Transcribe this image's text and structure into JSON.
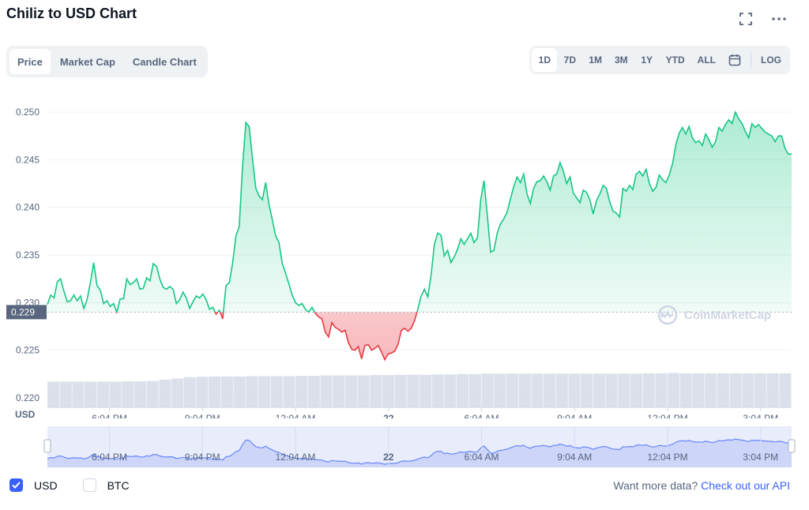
{
  "title": "Chiliz to USD Chart",
  "tabs": [
    {
      "label": "Price",
      "active": true
    },
    {
      "label": "Market Cap",
      "active": false
    },
    {
      "label": "Candle Chart",
      "active": false
    }
  ],
  "ranges": [
    {
      "label": "1D",
      "active": true
    },
    {
      "label": "7D",
      "active": false
    },
    {
      "label": "1M",
      "active": false
    },
    {
      "label": "3M",
      "active": false
    },
    {
      "label": "1Y",
      "active": false
    },
    {
      "label": "YTD",
      "active": false
    },
    {
      "label": "ALL",
      "active": false
    }
  ],
  "log_label": "LOG",
  "icons": {
    "fullscreen": "expand-icon",
    "more": "more-dots-icon",
    "calendar": "calendar-icon",
    "watermark": "coinmarketcap-logo"
  },
  "watermark_text": "CoinMarketCap",
  "currency_label": "USD",
  "legend": [
    {
      "label": "USD",
      "checked": true
    },
    {
      "label": "BTC",
      "checked": false
    }
  ],
  "more_data": {
    "text": "Want more data?",
    "link": "Check out our API"
  },
  "colors": {
    "up": "#16c784",
    "down": "#ea3943",
    "volume": "#cfd6e4",
    "accent": "#3861fb",
    "baseline_tag": "#58667e"
  },
  "chart_data": {
    "type": "area",
    "title": "Chiliz to USD Chart",
    "ylabel": "USD",
    "ylim": [
      0.219,
      0.251
    ],
    "yticks": [
      "0.250",
      "0.245",
      "0.240",
      "0.235",
      "0.230",
      "0.225",
      "0.220"
    ],
    "ytick_values": [
      0.25,
      0.245,
      0.24,
      0.235,
      0.23,
      0.225,
      0.22
    ],
    "baseline": 0.229,
    "baseline_label": "0.229",
    "x_ticks": [
      "6:04 PM",
      "9:04 PM",
      "12:04 AM",
      "22",
      "6:04 AM",
      "9:04 AM",
      "12:04 PM",
      "3:04 PM"
    ],
    "x_tick_hours": [
      2,
      5,
      8,
      11,
      14,
      17,
      20,
      23
    ],
    "x_range_hours": [
      0,
      24
    ],
    "grid": true,
    "series": [
      {
        "values": [
          0.2298,
          0.2308,
          0.2305,
          0.2322,
          0.2325,
          0.2312,
          0.2301,
          0.2302,
          0.2308,
          0.2302,
          0.2307,
          0.2294,
          0.2303,
          0.2321,
          0.2342,
          0.2318,
          0.2313,
          0.2299,
          0.2302,
          0.2296,
          0.2299,
          0.229,
          0.2304,
          0.2304,
          0.2325,
          0.2319,
          0.2321,
          0.2325,
          0.2314,
          0.2315,
          0.2326,
          0.2323,
          0.2341,
          0.2338,
          0.2325,
          0.2316,
          0.2314,
          0.2317,
          0.2314,
          0.2299,
          0.2303,
          0.2311,
          0.2305,
          0.2294,
          0.2301,
          0.2307,
          0.2305,
          0.2309,
          0.2303,
          0.2293,
          0.2295,
          0.2288,
          0.2292,
          0.2283,
          0.2318,
          0.2321,
          0.2342,
          0.237,
          0.238,
          0.2443,
          0.2489,
          0.2485,
          0.2451,
          0.242,
          0.2412,
          0.2408,
          0.2426,
          0.2403,
          0.2387,
          0.237,
          0.2363,
          0.2341,
          0.2331,
          0.232,
          0.2308,
          0.23,
          0.2297,
          0.2299,
          0.2293,
          0.229,
          0.2295,
          0.2289,
          0.2285,
          0.2283,
          0.2269,
          0.2264,
          0.2279,
          0.2274,
          0.2272,
          0.2269,
          0.2271,
          0.2258,
          0.2251,
          0.225,
          0.2254,
          0.2241,
          0.2255,
          0.2256,
          0.225,
          0.2252,
          0.2255,
          0.2248,
          0.224,
          0.2246,
          0.2247,
          0.2249,
          0.2256,
          0.2271,
          0.2273,
          0.227,
          0.2273,
          0.2281,
          0.2293,
          0.2307,
          0.2314,
          0.2306,
          0.2329,
          0.2361,
          0.2373,
          0.2371,
          0.2349,
          0.2355,
          0.2342,
          0.2348,
          0.2356,
          0.2367,
          0.2361,
          0.2367,
          0.2373,
          0.2363,
          0.2368,
          0.2408,
          0.2428,
          0.2392,
          0.2353,
          0.2355,
          0.2373,
          0.2383,
          0.2388,
          0.2395,
          0.2409,
          0.2422,
          0.2432,
          0.2426,
          0.2435,
          0.2414,
          0.2404,
          0.242,
          0.2427,
          0.2428,
          0.2433,
          0.2427,
          0.2418,
          0.2433,
          0.2435,
          0.2447,
          0.2438,
          0.2425,
          0.2432,
          0.2415,
          0.241,
          0.2405,
          0.2418,
          0.2416,
          0.2408,
          0.2393,
          0.2407,
          0.2414,
          0.2423,
          0.242,
          0.2406,
          0.2396,
          0.2394,
          0.239,
          0.242,
          0.2417,
          0.2423,
          0.2419,
          0.2435,
          0.2438,
          0.2433,
          0.244,
          0.2425,
          0.2417,
          0.2421,
          0.2434,
          0.2429,
          0.2426,
          0.2434,
          0.2446,
          0.2466,
          0.2478,
          0.2484,
          0.2477,
          0.2485,
          0.2473,
          0.2468,
          0.247,
          0.2465,
          0.2477,
          0.2471,
          0.2463,
          0.2469,
          0.2484,
          0.248,
          0.2487,
          0.2492,
          0.2488,
          0.25,
          0.2493,
          0.2488,
          0.248,
          0.2473,
          0.2488,
          0.2484,
          0.2487,
          0.2483,
          0.2479,
          0.2477,
          0.2475,
          0.2469,
          0.2475,
          0.2475,
          0.2462,
          0.2456,
          0.2456
        ]
      }
    ],
    "volume_relative": [
      0.74,
      0.74,
      0.74,
      0.74,
      0.74,
      0.74,
      0.75,
      0.75,
      0.76,
      0.8,
      0.83,
      0.87,
      0.88,
      0.89,
      0.89,
      0.89,
      0.9,
      0.9,
      0.9,
      0.9,
      0.91,
      0.91,
      0.92,
      0.92,
      0.92,
      0.92,
      0.93,
      0.93,
      0.94,
      0.94,
      0.94,
      0.95,
      0.95,
      0.96,
      0.96,
      0.97,
      0.97,
      0.97,
      0.97,
      0.97,
      0.97,
      0.97,
      0.97,
      0.97,
      0.97,
      0.97,
      0.97,
      0.97,
      0.98,
      0.98,
      0.99,
      0.98,
      0.98,
      0.98,
      0.98,
      0.98,
      0.98,
      0.98,
      0.98,
      0.98
    ]
  },
  "navigator": {
    "x_ticks": [
      "6:04 PM",
      "9:04 PM",
      "12:04 AM",
      "22",
      "6:04 AM",
      "9:04 AM",
      "12:04 PM",
      "3:04 PM"
    ]
  }
}
